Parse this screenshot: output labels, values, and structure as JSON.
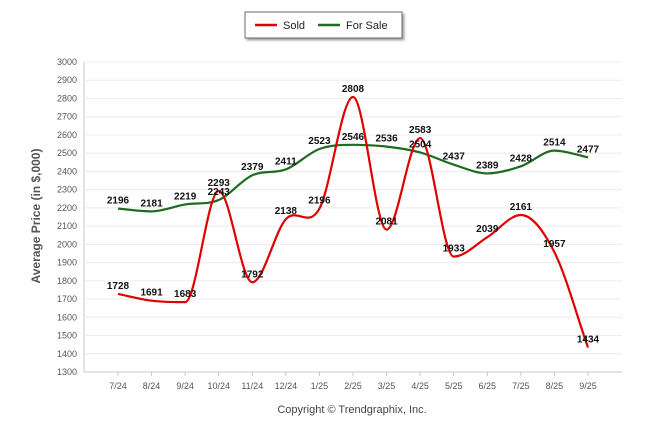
{
  "chart_data": {
    "type": "line",
    "title": "",
    "xlabel": "",
    "ylabel": "Average Price (in $,000)",
    "ylim": [
      1300,
      3000
    ],
    "ytick_step": 100,
    "grid": true,
    "legend": "top-center",
    "categories": [
      "7/24",
      "8/24",
      "9/24",
      "10/24",
      "11/24",
      "12/24",
      "1/25",
      "2/25",
      "3/25",
      "4/25",
      "5/25",
      "6/25",
      "7/25",
      "8/25",
      "9/25"
    ],
    "series": [
      {
        "name": "Sold",
        "color": "#e00000",
        "values": [
          1728,
          1691,
          1683,
          2293,
          1792,
          2138,
          2196,
          2808,
          2081,
          2583,
          1933,
          2039,
          2161,
          1957,
          1434
        ]
      },
      {
        "name": "For Sale",
        "color": "#1f6b1f",
        "values": [
          2196,
          2181,
          2219,
          2243,
          2379,
          2411,
          2523,
          2546,
          2536,
          2504,
          2437,
          2389,
          2428,
          2514,
          2477
        ]
      }
    ]
  },
  "footer": {
    "copyright": "Copyright © Trendgraphix, Inc."
  }
}
